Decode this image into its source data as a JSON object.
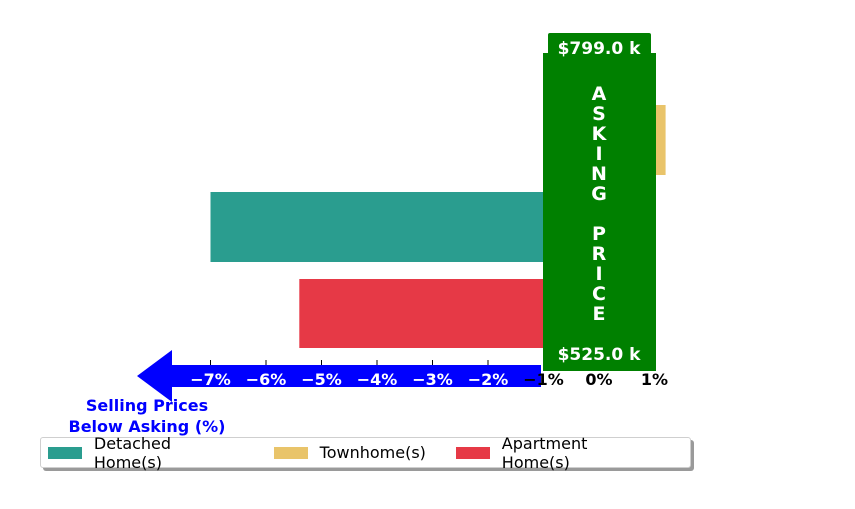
{
  "chart_data": {
    "type": "bar",
    "orientation": "horizontal",
    "series": [
      {
        "name": "Detached Home(s)",
        "value": -7.0,
        "color": "#2a9d8f"
      },
      {
        "name": "Townhome(s)",
        "value": 1.2,
        "color": "#e9c46a"
      },
      {
        "name": "Apartment Home(s)",
        "value": -5.4,
        "color": "#e63946"
      }
    ],
    "xlim": [
      -7.5,
      1.2
    ],
    "x_ticks": [
      {
        "value": -7,
        "label": "−7%"
      },
      {
        "value": -6,
        "label": "−6%"
      },
      {
        "value": -5,
        "label": "−5%"
      },
      {
        "value": -4,
        "label": "−4%"
      },
      {
        "value": -3,
        "label": "−3%"
      },
      {
        "value": -2,
        "label": "−2%"
      },
      {
        "value": -1,
        "label": "−1%"
      },
      {
        "value": 0,
        "label": "0%"
      },
      {
        "value": 1,
        "label": "1%"
      }
    ],
    "asking_banner": {
      "top_value": "$799.0 k",
      "bottom_value": "$525.0 k",
      "vertical_text": "ASKING PRICE",
      "color": "#008000"
    },
    "negative_arrow": {
      "label_line1": "Selling Prices",
      "label_line2": "Below Asking (%)",
      "color": "#0000ff"
    },
    "legend_position": "bottom-left",
    "grid": false
  }
}
